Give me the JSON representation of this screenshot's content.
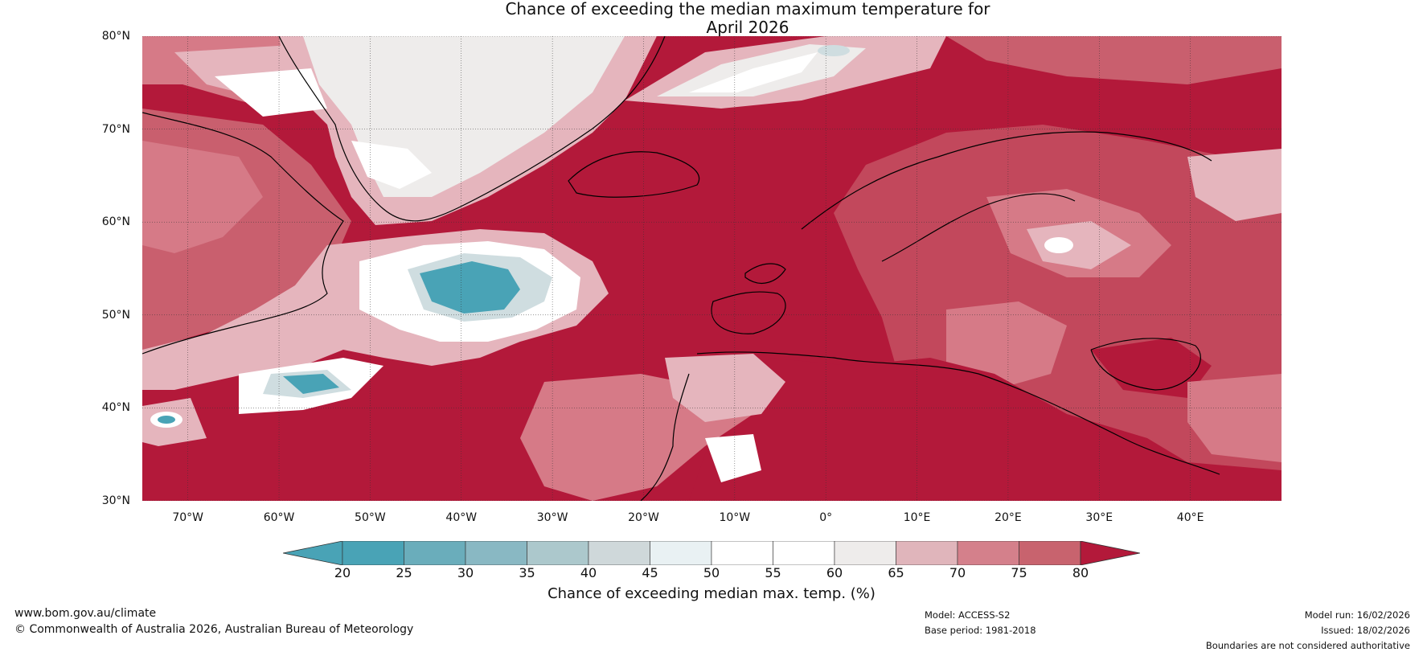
{
  "title": {
    "line1": "Chance of exceeding the median maximum temperature for",
    "line2": "April 2026"
  },
  "map": {
    "lat_range": [
      30,
      80
    ],
    "lon_range": [
      -75,
      50
    ],
    "lat_labels": [
      "80°N",
      "70°N",
      "60°N",
      "50°N",
      "40°N",
      "30°N"
    ],
    "lat_values": [
      80,
      70,
      60,
      50,
      40,
      30
    ],
    "lon_labels": [
      "70°W",
      "60°W",
      "50°W",
      "40°W",
      "30°W",
      "20°W",
      "10°W",
      "0°",
      "10°E",
      "20°E",
      "30°E",
      "40°E"
    ],
    "lon_values": [
      -70,
      -60,
      -50,
      -40,
      -30,
      -20,
      -10,
      0,
      10,
      20,
      30,
      40
    ],
    "dominant_category": "80+",
    "colors": {
      "ocean_high": "#b3193a",
      "land_high": "#c2485c",
      "mid_high": "#d67a87",
      "pale_high": "#e5b5bd",
      "neutral": "#eeeceb",
      "white": "#ffffff",
      "low_pale": "#cfdde0",
      "low": "#49a3b6"
    }
  },
  "colorbar": {
    "ticks": [
      "20",
      "25",
      "30",
      "35",
      "40",
      "45",
      "50",
      "55",
      "60",
      "65",
      "70",
      "75",
      "80"
    ],
    "colors": [
      "#49a3b6",
      "#6aadbb",
      "#89b8c3",
      "#acc8cc",
      "#cfd8da",
      "#e9f1f3",
      "#ffffff",
      "#ffffff",
      "#eeeceb",
      "#e0b5bb",
      "#d4808b",
      "#c8636e",
      "#bf3b4e"
    ],
    "low_extend_color": "#49a3b6",
    "high_extend_color": "#b3193a",
    "label": "Chance of exceeding median max. temp. (%)"
  },
  "footer": {
    "url": "www.bom.gov.au/climate",
    "copyright": "© Commonwealth of Australia 2026, Australian Bureau of Meteorology",
    "model": "Model: ACCESS-S2",
    "base_period": "Base period: 1981-2018",
    "model_run": "Model run: 16/02/2026",
    "issued": "Issued: 18/02/2026",
    "disclaimer": "Boundaries are not considered authoritative"
  }
}
